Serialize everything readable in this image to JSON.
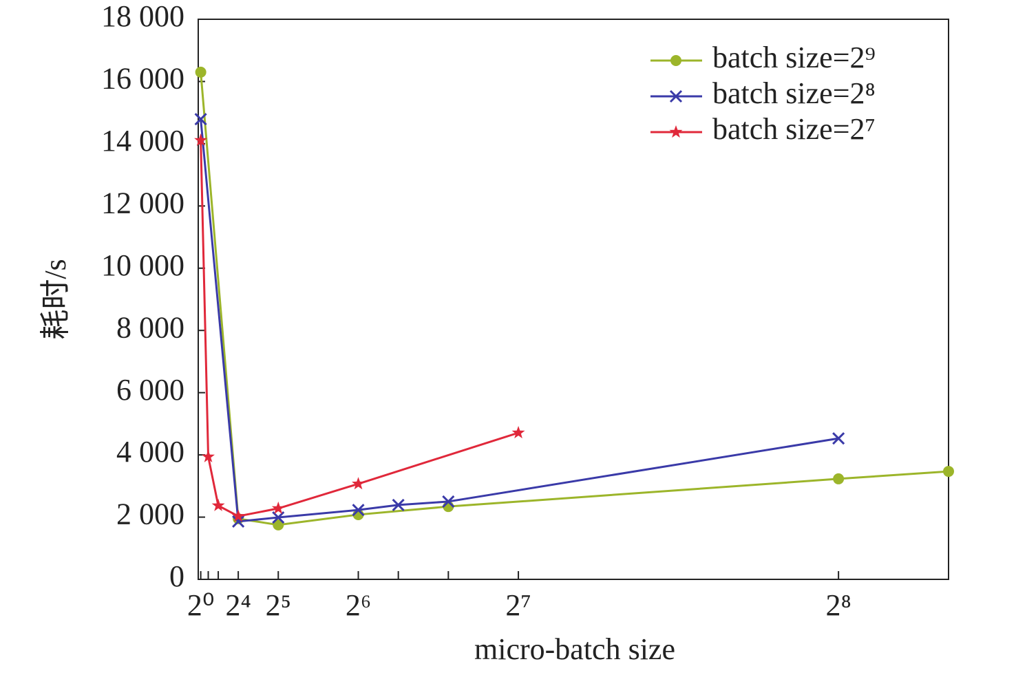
{
  "chart_data": {
    "type": "line",
    "x_label": "micro-batch size",
    "y_label": "耗时/s",
    "xlim": [
      0,
      300
    ],
    "ylim": [
      0,
      18000
    ],
    "xticks": [
      {
        "value": 1,
        "label": "2⁰"
      },
      {
        "value": 16,
        "label": "2⁴"
      },
      {
        "value": 32,
        "label": "2⁵"
      },
      {
        "value": 64,
        "label": "2⁶"
      },
      {
        "value": 128,
        "label": "2⁷"
      },
      {
        "value": 256,
        "label": "2⁸"
      }
    ],
    "minor_xticks": [
      4,
      8,
      80,
      100
    ],
    "yticks": [
      0,
      {
        "value": 2000,
        "label": "2 000"
      },
      {
        "value": 4000,
        "label": "4 000"
      },
      {
        "value": 6000,
        "label": "6 000"
      },
      {
        "value": 8000,
        "label": "8 000"
      },
      {
        "value": 10000,
        "label": "10 000"
      },
      {
        "value": 12000,
        "label": "12 000"
      },
      {
        "value": 14000,
        "label": "14 000"
      },
      {
        "value": 16000,
        "label": "16 000"
      },
      {
        "value": 18000,
        "label": "18 000"
      }
    ],
    "legend": "upper right",
    "series": [
      {
        "name": "batch size=2⁹",
        "color": "#9cb52a",
        "marker": "circle",
        "x": [
          1,
          16,
          32,
          64,
          100,
          256,
          300
        ],
        "values": [
          16300,
          1950,
          1750,
          2080,
          2340,
          3230,
          3470
        ]
      },
      {
        "name": "batch size=2⁸",
        "color": "#3a3aa8",
        "marker": "x",
        "x": [
          1,
          16,
          32,
          64,
          80,
          100,
          256
        ],
        "values": [
          14790,
          1860,
          1990,
          2230,
          2390,
          2500,
          4530
        ]
      },
      {
        "name": "batch size=2⁷",
        "color": "#e0283a",
        "marker": "star",
        "x": [
          1,
          4,
          8,
          16,
          32,
          64,
          128
        ],
        "values": [
          14110,
          3940,
          2370,
          2030,
          2280,
          3070,
          4710
        ]
      }
    ]
  }
}
